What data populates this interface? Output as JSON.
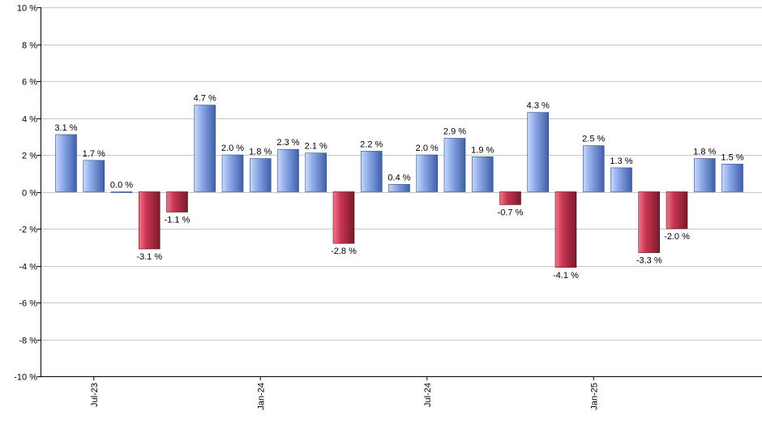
{
  "chart_data": {
    "type": "bar",
    "ylim": [
      -10,
      10
    ],
    "y_ticks": [
      10,
      8,
      6,
      4,
      2,
      0,
      -2,
      -4,
      -6,
      -8,
      -10
    ],
    "y_tick_suffix": " %",
    "grid": true,
    "positive_color": "#7f9fe0",
    "negative_color": "#c8344f",
    "values": [
      3.1,
      1.7,
      0.0,
      -3.1,
      -1.1,
      4.7,
      2.0,
      1.8,
      2.3,
      2.1,
      -2.8,
      2.2,
      0.4,
      2.0,
      2.9,
      1.9,
      -0.7,
      4.3,
      -4.1,
      2.5,
      1.3,
      -3.3,
      -2.0,
      1.8,
      1.5
    ],
    "labels": [
      "3.1 %",
      "1.7 %",
      "0.0 %",
      "-3.1 %",
      "-1.1 %",
      "4.7 %",
      "2.0 %",
      "1.8 %",
      "2.3 %",
      "2.1 %",
      "-2.8 %",
      "2.2 %",
      "0.4 %",
      "2.0 %",
      "2.9 %",
      "1.9 %",
      "-0.7 %",
      "4.3 %",
      "-4.1 %",
      "2.5 %",
      "1.3 %",
      "-3.3 %",
      "-2.0 %",
      "1.8 %",
      "1.5 %"
    ],
    "x_tick_labels": [
      {
        "label": "Jul-23",
        "bar_index": 1
      },
      {
        "label": "Jan-24",
        "bar_index": 7
      },
      {
        "label": "Jul-24",
        "bar_index": 13
      },
      {
        "label": "Jan-25",
        "bar_index": 19
      }
    ]
  }
}
